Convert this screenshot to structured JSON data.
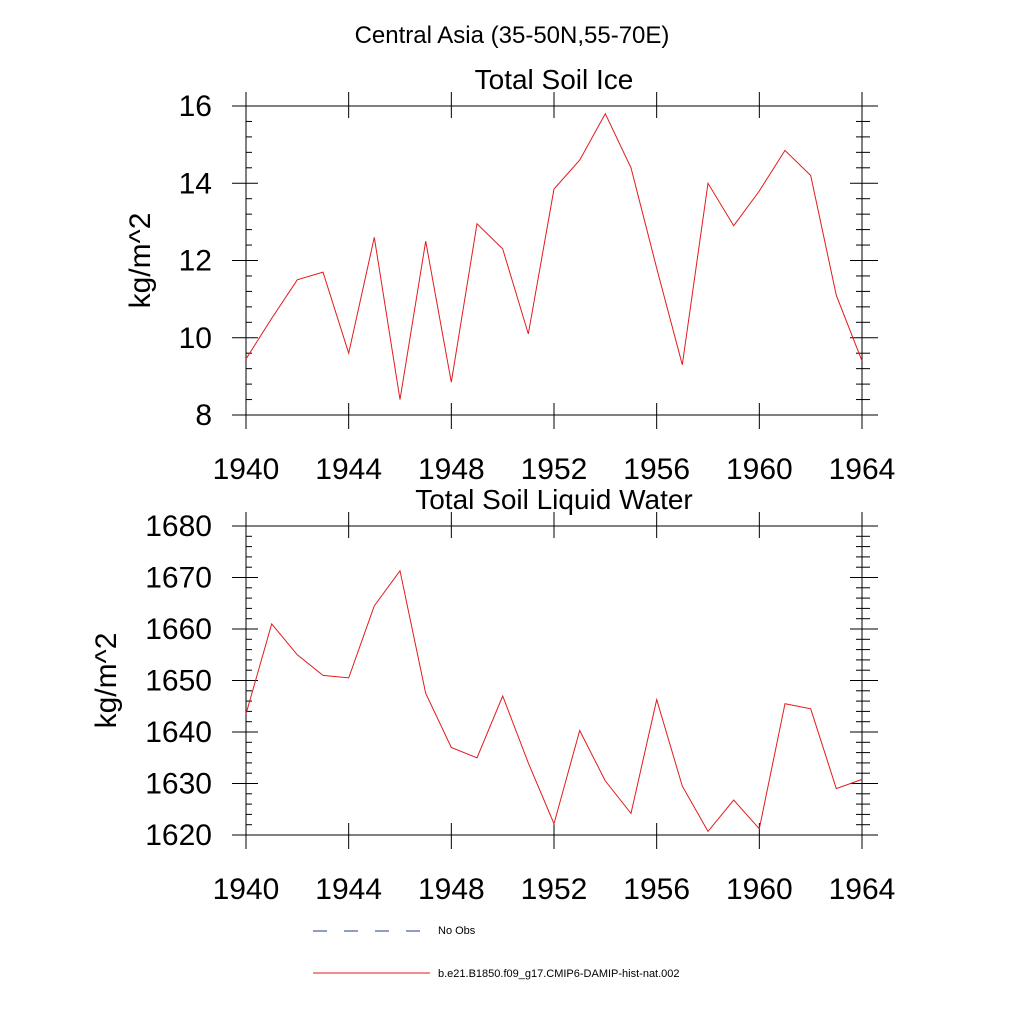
{
  "figure": {
    "title": "Central Asia (35-50N,55-70E)"
  },
  "legend": {
    "entries": [
      {
        "label": "No Obs",
        "color": "#1f3a93",
        "dash": "dashed"
      },
      {
        "label": "b.e21.B1850.f09_g17.CMIP6-DAMIP-hist-nat.002",
        "color": "#e31a1c",
        "dash": "solid"
      }
    ]
  },
  "colors": {
    "series": "#e31a1c",
    "no_obs": "#1f3a93",
    "axis": "#000000"
  },
  "chart_data": [
    {
      "type": "line",
      "title": "Total Soil Ice",
      "xlabel": "",
      "ylabel": "kg/m^2",
      "xlim": [
        1940,
        1964
      ],
      "ylim": [
        8,
        16
      ],
      "x_ticks": [
        1940,
        1944,
        1948,
        1952,
        1956,
        1960,
        1964
      ],
      "y_ticks": [
        8,
        10,
        12,
        14,
        16
      ],
      "grid": false,
      "series": [
        {
          "name": "b.e21.B1850.f09_g17.CMIP6-DAMIP-hist-nat.002",
          "color": "#e31a1c",
          "x": [
            1940,
            1941,
            1942,
            1943,
            1944,
            1945,
            1946,
            1947,
            1948,
            1949,
            1950,
            1951,
            1952,
            1953,
            1954,
            1955,
            1956,
            1957,
            1958,
            1959,
            1960,
            1961,
            1962,
            1963,
            1964
          ],
          "values": [
            9.45,
            10.5,
            11.5,
            11.7,
            9.6,
            12.6,
            8.4,
            12.5,
            8.85,
            12.95,
            12.3,
            10.1,
            13.85,
            14.6,
            15.8,
            14.4,
            11.8,
            9.3,
            14.0,
            12.9,
            13.8,
            14.85,
            14.2,
            11.1,
            9.4
          ]
        }
      ]
    },
    {
      "type": "line",
      "title": "Total Soil Liquid Water",
      "xlabel": "",
      "ylabel": "kg/m^2",
      "xlim": [
        1940,
        1964
      ],
      "ylim": [
        1620,
        1680
      ],
      "x_ticks": [
        1940,
        1944,
        1948,
        1952,
        1956,
        1960,
        1964
      ],
      "y_ticks": [
        1620,
        1630,
        1640,
        1650,
        1660,
        1670,
        1680
      ],
      "grid": false,
      "series": [
        {
          "name": "b.e21.B1850.f09_g17.CMIP6-DAMIP-hist-nat.002",
          "color": "#e31a1c",
          "x": [
            1940,
            1941,
            1942,
            1943,
            1944,
            1945,
            1946,
            1947,
            1948,
            1949,
            1950,
            1951,
            1952,
            1953,
            1954,
            1955,
            1956,
            1957,
            1958,
            1959,
            1960,
            1961,
            1962,
            1963,
            1964
          ],
          "values": [
            1643.5,
            1661,
            1655,
            1651,
            1650.5,
            1664.5,
            1671.3,
            1647.5,
            1637,
            1635,
            1647,
            1634,
            1622.2,
            1640.3,
            1630.5,
            1624.2,
            1646.3,
            1629.5,
            1620.7,
            1626.8,
            1621.2,
            1645.5,
            1644.5,
            1629,
            1630.8
          ]
        }
      ]
    }
  ]
}
